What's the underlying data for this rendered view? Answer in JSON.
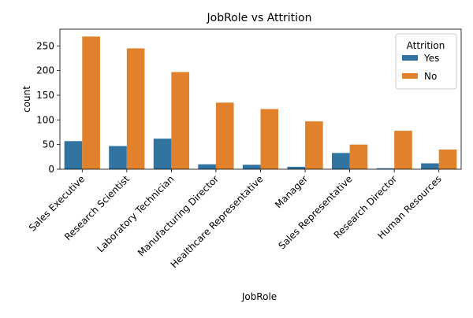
{
  "chart_data": {
    "type": "bar",
    "title": "JobRole vs Attrition",
    "xlabel": "JobRole",
    "ylabel": "count",
    "ylim": [
      0,
      284
    ],
    "yticks": [
      0,
      50,
      100,
      150,
      200,
      250
    ],
    "grid": false,
    "legend_position": "top-right",
    "legend_title": "Attrition",
    "categories": [
      "Sales Executive",
      "Research Scientist",
      "Laboratory Technician",
      "Manufacturing Director",
      "Healthcare Representative",
      "Manager",
      "Sales Representative",
      "Research Director",
      "Human Resources"
    ],
    "series": [
      {
        "name": "Yes",
        "color": "#3274a1",
        "values": [
          57,
          47,
          62,
          10,
          9,
          5,
          33,
          2,
          12
        ]
      },
      {
        "name": "No",
        "color": "#e1812c",
        "values": [
          269,
          245,
          197,
          135,
          122,
          97,
          50,
          78,
          40
        ]
      }
    ]
  }
}
